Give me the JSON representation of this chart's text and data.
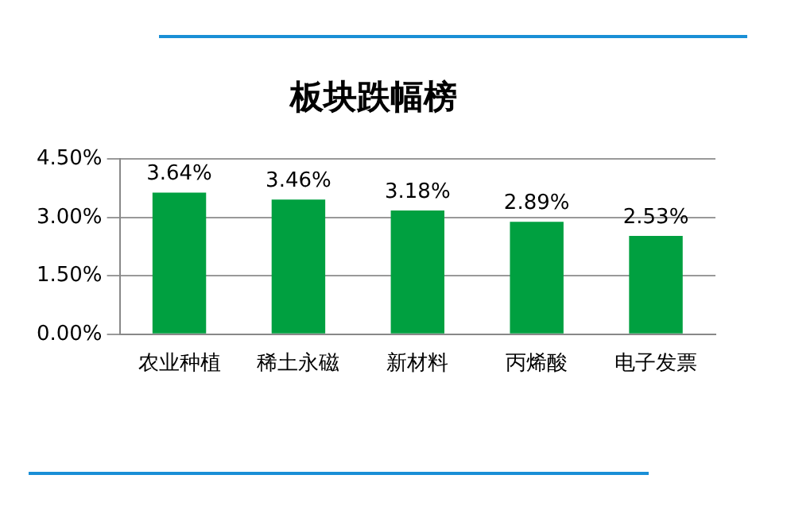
{
  "chart_data": {
    "type": "bar",
    "title": "板块跌幅榜",
    "categories": [
      "农业种植",
      "稀土永磁",
      "新材料",
      "丙烯酸",
      "电子发票"
    ],
    "values": [
      3.64,
      3.46,
      3.18,
      2.89,
      2.53
    ],
    "value_labels": [
      "3.64%",
      "3.46%",
      "3.18%",
      "2.89%",
      "2.53%"
    ],
    "color": "#00a040",
    "ylim": [
      0,
      4.5
    ],
    "yticks": [
      {
        "value": 0,
        "label": "0.00%"
      },
      {
        "value": 1.5,
        "label": "1.50%"
      },
      {
        "value": 3,
        "label": "3.00%"
      },
      {
        "value": 4.5,
        "label": "4.50%"
      }
    ],
    "grid": "y",
    "legend": false
  }
}
